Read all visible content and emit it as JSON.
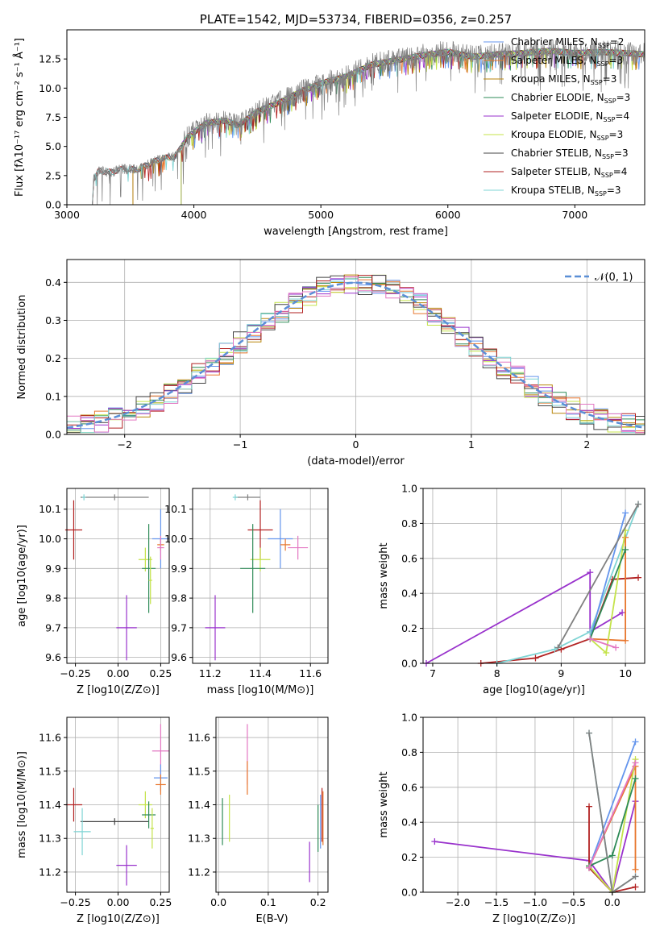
{
  "chart_data": [
    {
      "id": "spectrum",
      "type": "line",
      "title": "PLATE=1542, MJD=53734, FIBERID=0356, z=0.257",
      "xlabel": "wavelength [Angstrom, rest frame]",
      "ylabel": "Flux [fλ10⁻¹⁷ erg cm⁻² s⁻¹ Å⁻¹]",
      "xlim": [
        3000,
        7550
      ],
      "ylim": [
        0,
        15
      ],
      "xticks": [
        3000,
        4000,
        5000,
        6000,
        7000
      ],
      "xtick_labels": [
        "3000",
        "4000",
        "5000",
        "6000",
        "7000"
      ],
      "yticks": [
        0,
        2.5,
        5,
        7.5,
        10,
        12.5
      ],
      "ytick_labels": [
        "0.0",
        "2.5",
        "5.0",
        "7.5",
        "10.0",
        "12.5"
      ],
      "data_color": "#808080",
      "data_continuum": [
        [
          3200,
          0
        ],
        [
          3210,
          2.2
        ],
        [
          3250,
          2.9
        ],
        [
          3350,
          2.8
        ],
        [
          3450,
          3.1
        ],
        [
          3550,
          3.0
        ],
        [
          3650,
          3.5
        ],
        [
          3750,
          4.0
        ],
        [
          3850,
          4.1
        ],
        [
          3950,
          5.8
        ],
        [
          4100,
          7.0
        ],
        [
          4250,
          7.2
        ],
        [
          4350,
          6.8
        ],
        [
          4500,
          8.0
        ],
        [
          4700,
          8.9
        ],
        [
          4860,
          9.8
        ],
        [
          5000,
          10.4
        ],
        [
          5200,
          11.0
        ],
        [
          5400,
          12.0
        ],
        [
          5600,
          12.4
        ],
        [
          5800,
          12.8
        ],
        [
          6000,
          13.1
        ],
        [
          6200,
          12.7
        ],
        [
          6400,
          12.9
        ],
        [
          6600,
          13.0
        ],
        [
          6800,
          13.2
        ],
        [
          7000,
          13.0
        ],
        [
          7200,
          13.1
        ],
        [
          7400,
          13.0
        ],
        [
          7550,
          12.9
        ]
      ],
      "models": [
        {
          "label": "Chabrier MILES, N<sub>SSP</sub>=2",
          "color": "#6495ed",
          "start": 3520
        },
        {
          "label": "Salpeter MILES, N<sub>SSP</sub>=3",
          "color": "#e8772e",
          "start": 3520
        },
        {
          "label": "Kroupa MILES, N<sub>SSP</sub>=3",
          "color": "#b8860b",
          "start": 3520
        },
        {
          "label": "Chabrier ELODIE, N<sub>SSP</sub>=3",
          "color": "#2e8b57",
          "start": 3900
        },
        {
          "label": "Salpeter ELODIE, N<sub>SSP</sub>=4",
          "color": "#9932cc",
          "start": 3900
        },
        {
          "label": "Kroupa ELODIE, N<sub>SSP</sub>=3",
          "color": "#c4e34a",
          "start": 3900
        },
        {
          "label": "Chabrier STELIB, N<sub>SSP</sub>=3",
          "color": "#444444",
          "start": 3200
        },
        {
          "label": "Salpeter STELIB, N<sub>SSP</sub>=4",
          "color": "#b22222",
          "start": 3200
        },
        {
          "label": "Kroupa STELIB, N<sub>SSP</sub>=3",
          "color": "#7fd4d4",
          "start": 3200
        }
      ]
    },
    {
      "id": "residuals",
      "type": "line",
      "xlabel": "(data-model)/error",
      "ylabel": "Normed distribution",
      "xlim": [
        -2.5,
        2.5
      ],
      "ylim": [
        0,
        0.46
      ],
      "xticks": [
        -2,
        -1,
        0,
        1,
        2
      ],
      "xtick_labels": [
        "−2",
        "−1",
        "0",
        "1",
        "2"
      ],
      "yticks": [
        0,
        0.1,
        0.2,
        0.3,
        0.4
      ],
      "ytick_labels": [
        "0.0",
        "0.1",
        "0.2",
        "0.3",
        "0.4"
      ],
      "gaussian_label": "𝒩(0, 1)",
      "gaussian_color": "#5b8fd6",
      "hist_colors": [
        "#6495ed",
        "#e8772e",
        "#b8860b",
        "#2e8b57",
        "#9932cc",
        "#c4e34a",
        "#444444",
        "#b22222",
        "#7fd4d4",
        "#e377c2"
      ]
    },
    {
      "id": "age_vs_Z",
      "type": "scatter",
      "xlabel": "Z [log10(Z/Z⊙)]",
      "ylabel": "age  [log10(age/yr)]",
      "xlim": [
        -0.3,
        0.3
      ],
      "ylim": [
        9.58,
        10.17
      ],
      "xticks": [
        -0.25,
        0,
        0.25
      ],
      "xtick_labels": [
        "−0.25",
        "0.00",
        "0.25"
      ],
      "yticks": [
        9.6,
        9.7,
        9.8,
        9.9,
        10.0,
        10.1
      ],
      "ytick_labels": [
        "9.6",
        "9.7",
        "9.8",
        "9.9",
        "10.0",
        "10.1"
      ],
      "points": [
        {
          "x": -0.02,
          "y": 10.14,
          "xerr": 0.2,
          "yerr": 0.01,
          "color": "#808080"
        },
        {
          "x": -0.2,
          "y": 10.14,
          "xerr": 0.01,
          "yerr": 0.01,
          "color": "#7fd4d4"
        },
        {
          "x": -0.26,
          "y": 10.03,
          "xerr": 0.05,
          "yerr": 0.1,
          "color": "#b22222"
        },
        {
          "x": 0.25,
          "y": 10.0,
          "xerr": 0.05,
          "yerr": 0.1,
          "color": "#6495ed"
        },
        {
          "x": 0.25,
          "y": 9.98,
          "xerr": 0.02,
          "yerr": 0.02,
          "color": "#e8772e"
        },
        {
          "x": 0.25,
          "y": 9.97,
          "xerr": 0.02,
          "yerr": 0.04,
          "color": "#e377c2"
        },
        {
          "x": 0.16,
          "y": 9.93,
          "xerr": 0.04,
          "yerr": 0.04,
          "color": "#c4e34a"
        },
        {
          "x": 0.18,
          "y": 9.9,
          "xerr": 0.04,
          "yerr": 0.15,
          "color": "#2e8b57"
        },
        {
          "x": 0.19,
          "y": 9.86,
          "xerr": 0.01,
          "yerr": 0.08,
          "color": "#c4e34a"
        },
        {
          "x": 0.05,
          "y": 9.7,
          "xerr": 0.06,
          "yerr": 0.11,
          "color": "#9932cc"
        }
      ]
    },
    {
      "id": "age_vs_mass",
      "type": "scatter",
      "xlabel": "mass [log10(M/M⊙)]",
      "ylabel": "",
      "xlim": [
        11.13,
        11.67
      ],
      "ylim": [
        9.58,
        10.17
      ],
      "xticks": [
        11.2,
        11.4,
        11.6
      ],
      "xtick_labels": [
        "11.2",
        "11.4",
        "11.6"
      ],
      "yticks": [
        9.6,
        9.7,
        9.8,
        9.9,
        10.0,
        10.1
      ],
      "ytick_labels": [
        "9.6",
        "9.7",
        "9.8",
        "9.9",
        "10.0",
        "10.1"
      ],
      "points": [
        {
          "x": 11.35,
          "y": 10.14,
          "xerr": 0.05,
          "yerr": 0.01,
          "color": "#808080"
        },
        {
          "x": 11.3,
          "y": 10.14,
          "xerr": 0.01,
          "yerr": 0.01,
          "color": "#7fd4d4"
        },
        {
          "x": 11.4,
          "y": 10.03,
          "xerr": 0.05,
          "yerr": 0.1,
          "color": "#b22222"
        },
        {
          "x": 11.48,
          "y": 10.0,
          "xerr": 0.05,
          "yerr": 0.1,
          "color": "#6495ed"
        },
        {
          "x": 11.5,
          "y": 9.98,
          "xerr": 0.02,
          "yerr": 0.02,
          "color": "#e8772e"
        },
        {
          "x": 11.55,
          "y": 9.97,
          "xerr": 0.04,
          "yerr": 0.04,
          "color": "#e377c2"
        },
        {
          "x": 11.4,
          "y": 9.93,
          "xerr": 0.04,
          "yerr": 0.04,
          "color": "#c4e34a"
        },
        {
          "x": 11.37,
          "y": 9.9,
          "xerr": 0.05,
          "yerr": 0.15,
          "color": "#2e8b57"
        },
        {
          "x": 11.22,
          "y": 9.7,
          "xerr": 0.04,
          "yerr": 0.11,
          "color": "#9932cc"
        }
      ]
    },
    {
      "id": "weight_vs_age",
      "type": "line",
      "xlabel": "age  [log10(age/yr)]",
      "ylabel": "mass weight",
      "xlim": [
        6.85,
        10.3
      ],
      "ylim": [
        0,
        1.0
      ],
      "xticks": [
        7,
        8,
        9,
        10
      ],
      "xtick_labels": [
        "7",
        "8",
        "9",
        "10"
      ],
      "yticks": [
        0,
        0.2,
        0.4,
        0.6,
        0.8,
        1.0
      ],
      "ytick_labels": [
        "0.0",
        "0.2",
        "0.4",
        "0.6",
        "0.8",
        "1.0"
      ],
      "series": [
        {
          "color": "#9932cc",
          "x": [
            6.9,
            9.45,
            9.45,
            9.95
          ],
          "y": [
            0.0,
            0.52,
            0.18,
            0.29
          ]
        },
        {
          "color": "#b22222",
          "x": [
            7.75,
            8.6,
            9.0,
            9.45,
            9.8,
            10.2
          ],
          "y": [
            0.0,
            0.03,
            0.08,
            0.14,
            0.48,
            0.49
          ]
        },
        {
          "color": "#7fd4d4",
          "x": [
            8.0,
            8.9,
            9.45,
            10.2
          ],
          "y": [
            0.0,
            0.08,
            0.18,
            0.91
          ]
        },
        {
          "color": "#6495ed",
          "x": [
            9.45,
            10.0
          ],
          "y": [
            0.14,
            0.86
          ]
        },
        {
          "color": "#e8772e",
          "x": [
            9.45,
            10.0,
            10.0
          ],
          "y": [
            0.14,
            0.13,
            0.72
          ]
        },
        {
          "color": "#c4e34a",
          "x": [
            9.45,
            9.7,
            10.0
          ],
          "y": [
            0.14,
            0.06,
            0.76
          ]
        },
        {
          "color": "#2e8b57",
          "x": [
            9.45,
            10.0
          ],
          "y": [
            0.14,
            0.65
          ]
        },
        {
          "color": "#e377c2",
          "x": [
            9.45,
            9.85
          ],
          "y": [
            0.14,
            0.09
          ]
        },
        {
          "color": "#808080",
          "x": [
            8.95,
            10.2
          ],
          "y": [
            0.09,
            0.91
          ]
        }
      ]
    },
    {
      "id": "mass_vs_Z",
      "type": "scatter",
      "xlabel": "Z [log10(Z/Z⊙)]",
      "ylabel": "mass [log10(M/M⊙)]",
      "xlim": [
        -0.3,
        0.3
      ],
      "ylim": [
        11.14,
        11.66
      ],
      "xticks": [
        -0.25,
        0,
        0.25
      ],
      "xtick_labels": [
        "−0.25",
        "0.00",
        "0.25"
      ],
      "yticks": [
        11.2,
        11.3,
        11.4,
        11.5,
        11.6
      ],
      "ytick_labels": [
        "11.2",
        "11.3",
        "11.4",
        "11.5",
        "11.6"
      ],
      "points": [
        {
          "x": -0.26,
          "y": 11.4,
          "xerr": 0.05,
          "yerr": 0.05,
          "color": "#b22222"
        },
        {
          "x": -0.02,
          "y": 11.35,
          "xerr": 0.2,
          "yerr": 0.01,
          "color": "#444444"
        },
        {
          "x": -0.21,
          "y": 11.32,
          "xerr": 0.05,
          "yerr": 0.07,
          "color": "#7fd4d4"
        },
        {
          "x": 0.25,
          "y": 11.56,
          "xerr": 0.05,
          "yerr": 0.08,
          "color": "#e377c2"
        },
        {
          "x": 0.25,
          "y": 11.48,
          "xerr": 0.04,
          "yerr": 0.04,
          "color": "#6495ed"
        },
        {
          "x": 0.25,
          "y": 11.46,
          "xerr": 0.03,
          "yerr": 0.03,
          "color": "#e8772e"
        },
        {
          "x": 0.16,
          "y": 11.4,
          "xerr": 0.04,
          "yerr": 0.04,
          "color": "#c4e34a"
        },
        {
          "x": 0.18,
          "y": 11.37,
          "xerr": 0.04,
          "yerr": 0.04,
          "color": "#2e8b57"
        },
        {
          "x": 0.2,
          "y": 11.33,
          "xerr": 0.01,
          "yerr": 0.06,
          "color": "#c4e34a"
        },
        {
          "x": 0.05,
          "y": 11.22,
          "xerr": 0.06,
          "yerr": 0.06,
          "color": "#9932cc"
        }
      ]
    },
    {
      "id": "mass_vs_ebv",
      "type": "scatter",
      "xlabel": "E(B-V)",
      "ylabel": "",
      "xlim": [
        -0.005,
        0.22
      ],
      "ylim": [
        11.14,
        11.66
      ],
      "xticks": [
        0.0,
        0.1,
        0.2
      ],
      "xtick_labels": [
        "0.0",
        "0.1",
        "0.2"
      ],
      "yticks": [
        11.2,
        11.3,
        11.4,
        11.5,
        11.6
      ],
      "ytick_labels": [
        "11.2",
        "11.3",
        "11.4",
        "11.5",
        "11.6"
      ],
      "points": [
        {
          "x": 0.058,
          "y": 11.55,
          "xerr": 0,
          "yerr": 0.09,
          "color": "#e377c2"
        },
        {
          "x": 0.058,
          "y": 11.48,
          "xerr": 0,
          "yerr": 0.05,
          "color": "#e8772e"
        },
        {
          "x": 0.008,
          "y": 11.35,
          "xerr": 0,
          "yerr": 0.07,
          "color": "#2e8b57"
        },
        {
          "x": 0.022,
          "y": 11.36,
          "xerr": 0,
          "yerr": 0.07,
          "color": "#c4e34a"
        },
        {
          "x": 0.183,
          "y": 11.23,
          "xerr": 0,
          "yerr": 0.06,
          "color": "#9932cc"
        },
        {
          "x": 0.2,
          "y": 11.33,
          "xerr": 0,
          "yerr": 0.07,
          "color": "#2e8b57"
        },
        {
          "x": 0.205,
          "y": 11.35,
          "xerr": 0,
          "yerr": 0.08,
          "color": "#6495ed"
        },
        {
          "x": 0.208,
          "y": 11.37,
          "xerr": 0,
          "yerr": 0.08,
          "color": "#b22222"
        },
        {
          "x": 0.21,
          "y": 11.36,
          "xerr": 0,
          "yerr": 0.08,
          "color": "#e8772e"
        }
      ]
    },
    {
      "id": "weight_vs_Z",
      "type": "line",
      "xlabel": "Z [log10(Z/Z⊙)]",
      "ylabel": "mass weight",
      "xlim": [
        -2.45,
        0.42
      ],
      "ylim": [
        0,
        1.0
      ],
      "xticks": [
        -2.0,
        -1.5,
        -1.0,
        -0.5,
        0.0
      ],
      "xtick_labels": [
        "−2.0",
        "−1.5",
        "−1.0",
        "−0.5",
        "0.0"
      ],
      "yticks": [
        0,
        0.2,
        0.4,
        0.6,
        0.8,
        1.0
      ],
      "ytick_labels": [
        "0.0",
        "0.2",
        "0.4",
        "0.6",
        "0.8",
        "1.0"
      ],
      "series": [
        {
          "color": "#9932cc",
          "x": [
            -2.3,
            -0.3,
            0.0,
            0.3
          ],
          "y": [
            0.29,
            0.18,
            0.0,
            0.52
          ]
        },
        {
          "color": "#b22222",
          "x": [
            -0.3,
            -0.3,
            0.0,
            0.3
          ],
          "y": [
            0.49,
            0.14,
            0.0,
            0.03
          ]
        },
        {
          "color": "#7fd4d4",
          "x": [
            -0.3,
            0.0,
            0.3
          ],
          "y": [
            0.91,
            0.0,
            0.09
          ]
        },
        {
          "color": "#6495ed",
          "x": [
            -0.3,
            0.3
          ],
          "y": [
            0.14,
            0.86
          ]
        },
        {
          "color": "#e8772e",
          "x": [
            -0.3,
            0.3,
            0.3
          ],
          "y": [
            0.14,
            0.72,
            0.13
          ]
        },
        {
          "color": "#c4e34a",
          "x": [
            -0.3,
            0.0,
            0.3
          ],
          "y": [
            0.15,
            0.0,
            0.76
          ]
        },
        {
          "color": "#2e8b57",
          "x": [
            -0.3,
            0.0,
            0.3
          ],
          "y": [
            0.15,
            0.21,
            0.65
          ]
        },
        {
          "color": "#e377c2",
          "x": [
            -0.3,
            0.3
          ],
          "y": [
            0.14,
            0.74
          ]
        },
        {
          "color": "#808080",
          "x": [
            -0.3,
            0.0,
            0.3
          ],
          "y": [
            0.91,
            0.0,
            0.09
          ]
        }
      ]
    }
  ]
}
